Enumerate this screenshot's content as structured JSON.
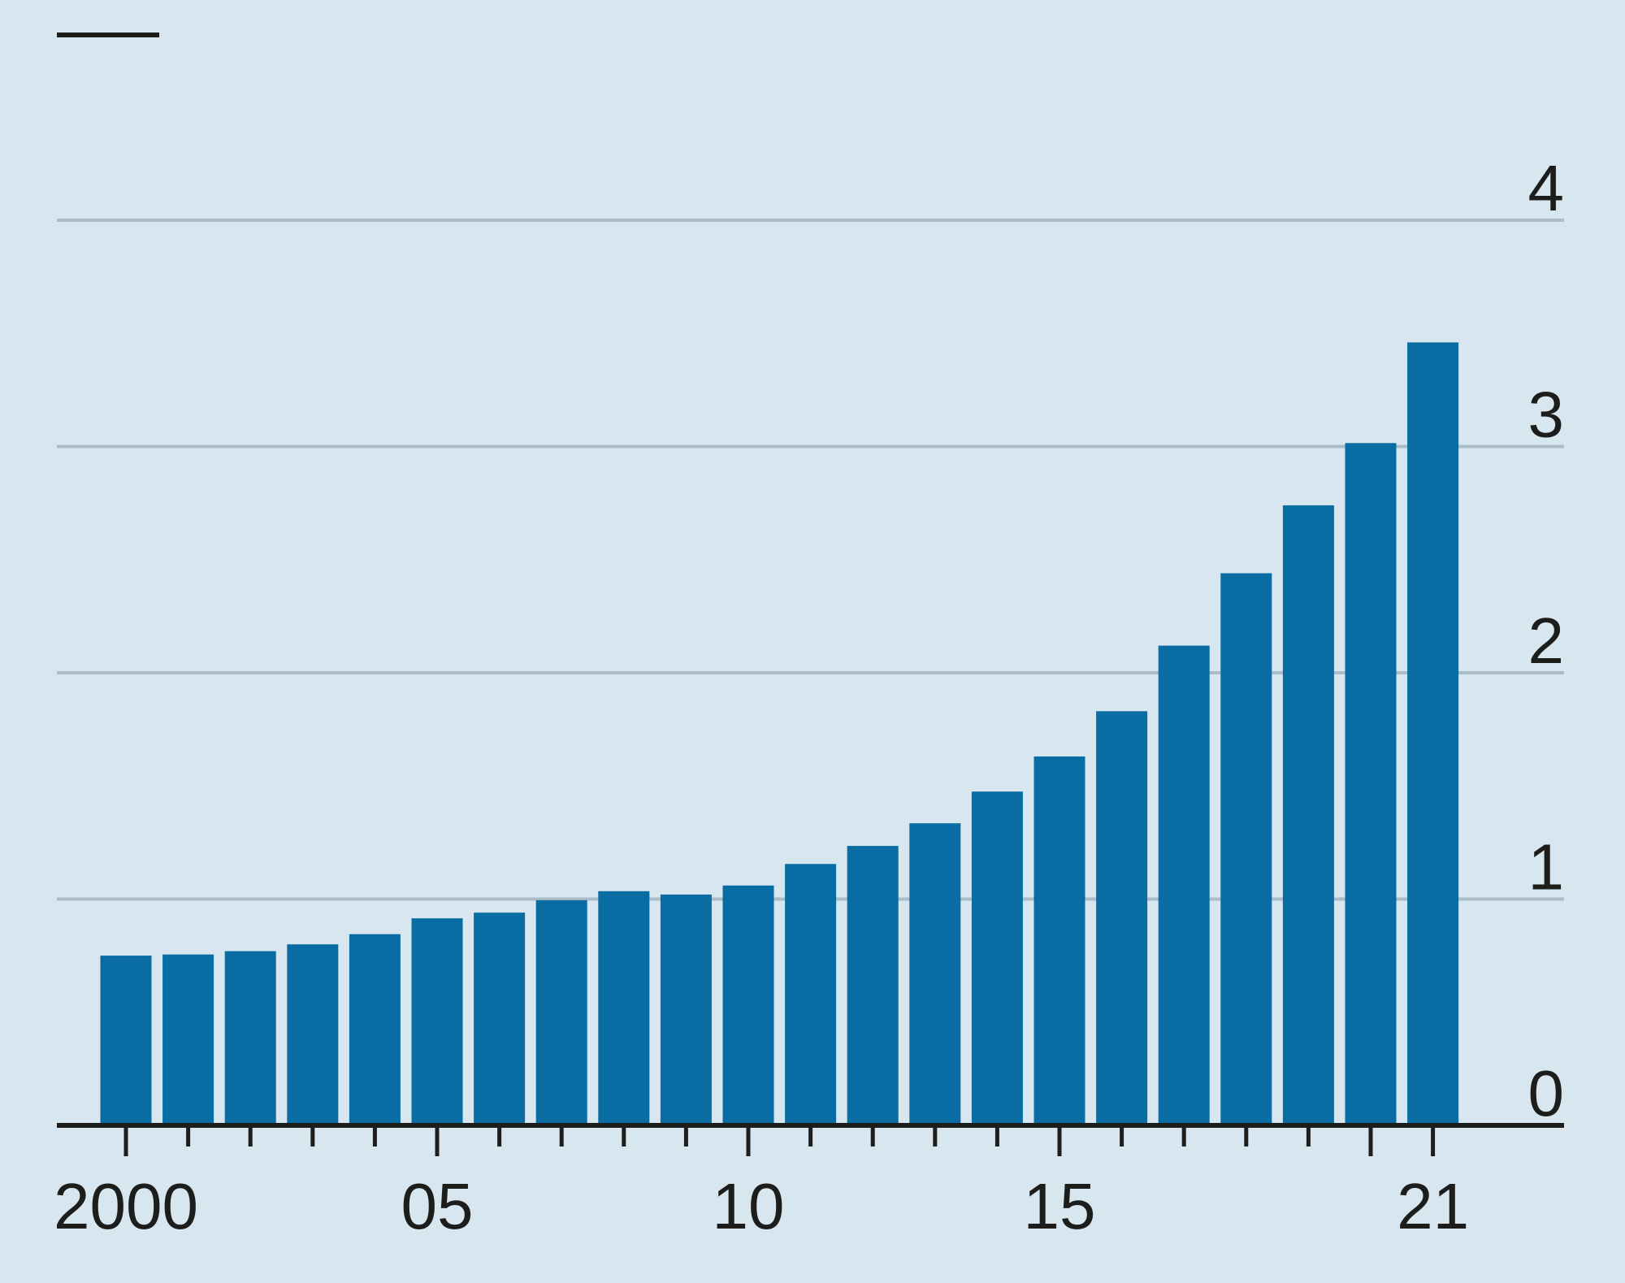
{
  "colors": {
    "background": "#d7e6ef",
    "bar": "#096da3",
    "gridline": "#a9bcc7",
    "axis": "#1d1d1b",
    "text": "#1d1d1b"
  },
  "chart_data": {
    "type": "bar",
    "title": "",
    "xlabel": "",
    "ylabel": "",
    "ylim": [
      0,
      4
    ],
    "grid": true,
    "y_axis_side": "right",
    "yticks": [
      0,
      1,
      2,
      3,
      4
    ],
    "ytick_labels": [
      "0",
      "1",
      "2",
      "3",
      "4"
    ],
    "categories": [
      "2000",
      "2001",
      "2002",
      "2003",
      "2004",
      "2005",
      "2006",
      "2007",
      "2008",
      "2009",
      "2010",
      "2011",
      "2012",
      "2013",
      "2014",
      "2015",
      "2016",
      "2017",
      "2018",
      "2019",
      "2020",
      "2021"
    ],
    "values": [
      0.75,
      0.755,
      0.77,
      0.8,
      0.845,
      0.915,
      0.94,
      0.995,
      1.035,
      1.02,
      1.06,
      1.155,
      1.235,
      1.335,
      1.475,
      1.63,
      1.83,
      2.12,
      2.44,
      2.74,
      3.015,
      3.46
    ],
    "xtick_labels": [
      {
        "category": "2000",
        "label": "2000"
      },
      {
        "category": "2005",
        "label": "05"
      },
      {
        "category": "2010",
        "label": "10"
      },
      {
        "category": "2015",
        "label": "15"
      },
      {
        "category": "2021",
        "label": "21"
      }
    ],
    "major_ticks": [
      "2000",
      "2005",
      "2010",
      "2015",
      "2020",
      "2021"
    ]
  }
}
